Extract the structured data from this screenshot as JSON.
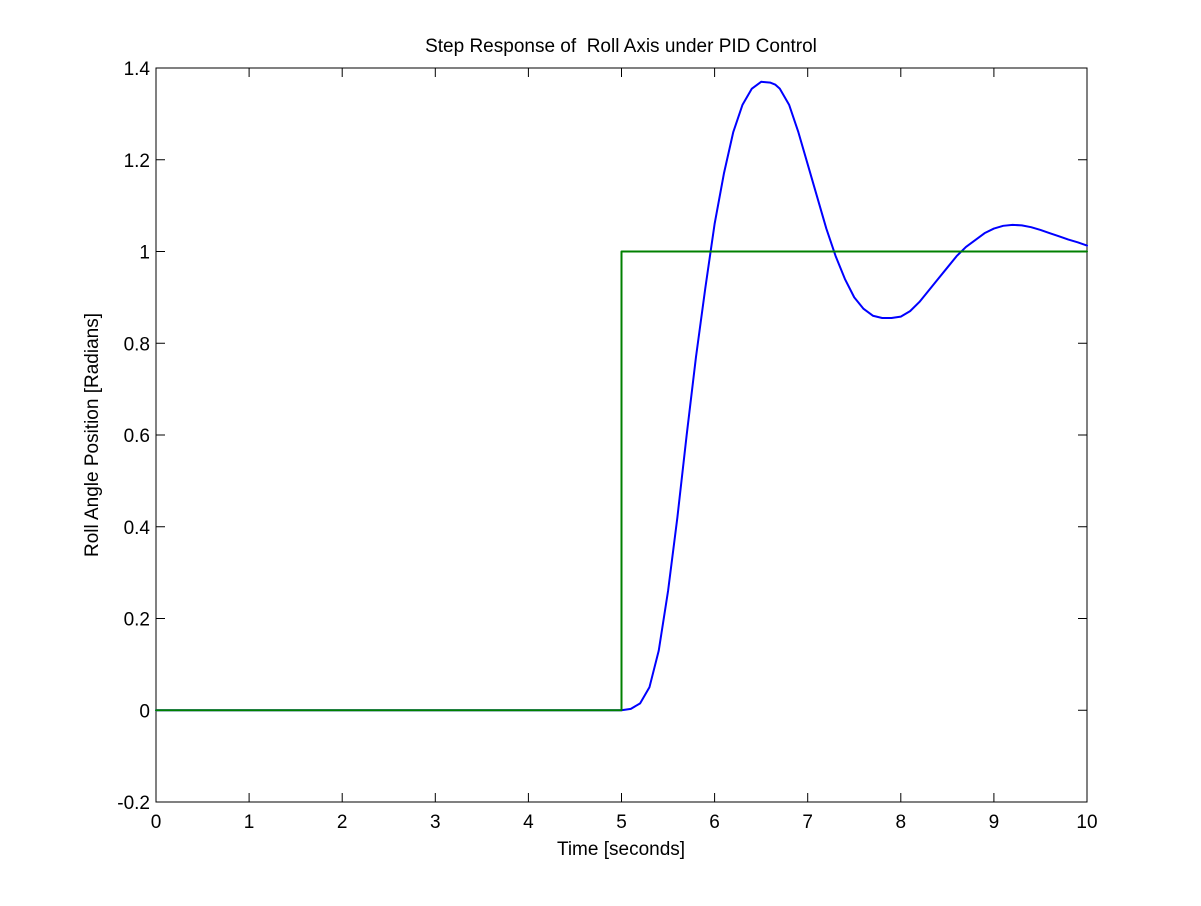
{
  "chart_data": {
    "type": "line",
    "title": "Step Response of  Roll Axis under PID Control",
    "xlabel": "Time [seconds]",
    "ylabel": "Roll Angle Position [Radians]",
    "xlim": [
      0,
      10
    ],
    "ylim": [
      -0.2,
      1.4
    ],
    "xticks": [
      "0",
      "1",
      "2",
      "3",
      "4",
      "5",
      "6",
      "7",
      "8",
      "9",
      "10"
    ],
    "yticks": [
      "-0.2",
      "0",
      "0.2",
      "0.4",
      "0.6",
      "0.8",
      "1",
      "1.2",
      "1.4"
    ],
    "grid": false,
    "legend": "none",
    "series": [
      {
        "color": "#0000ff",
        "x": [
          0,
          5.0,
          5.1,
          5.2,
          5.3,
          5.4,
          5.5,
          5.6,
          5.7,
          5.8,
          5.9,
          6.0,
          6.1,
          6.2,
          6.3,
          6.4,
          6.5,
          6.6,
          6.65,
          6.7,
          6.8,
          6.9,
          7.0,
          7.1,
          7.2,
          7.3,
          7.4,
          7.5,
          7.6,
          7.7,
          7.8,
          7.9,
          8.0,
          8.1,
          8.2,
          8.3,
          8.4,
          8.5,
          8.6,
          8.7,
          8.8,
          8.9,
          9.0,
          9.1,
          9.2,
          9.3,
          9.4,
          9.5,
          9.6,
          9.7,
          9.8,
          9.9,
          10.0
        ],
        "y": [
          0,
          0,
          0.003,
          0.015,
          0.05,
          0.13,
          0.26,
          0.42,
          0.6,
          0.77,
          0.92,
          1.06,
          1.17,
          1.26,
          1.32,
          1.355,
          1.37,
          1.368,
          1.364,
          1.355,
          1.32,
          1.26,
          1.19,
          1.12,
          1.05,
          0.99,
          0.94,
          0.9,
          0.875,
          0.86,
          0.855,
          0.855,
          0.858,
          0.87,
          0.89,
          0.915,
          0.94,
          0.965,
          0.99,
          1.01,
          1.025,
          1.04,
          1.05,
          1.056,
          1.058,
          1.057,
          1.053,
          1.047,
          1.04,
          1.033,
          1.026,
          1.02,
          1.013
        ]
      },
      {
        "color": "#008000",
        "x": [
          0,
          5,
          5,
          10
        ],
        "y": [
          0,
          0,
          1,
          1
        ]
      }
    ]
  }
}
